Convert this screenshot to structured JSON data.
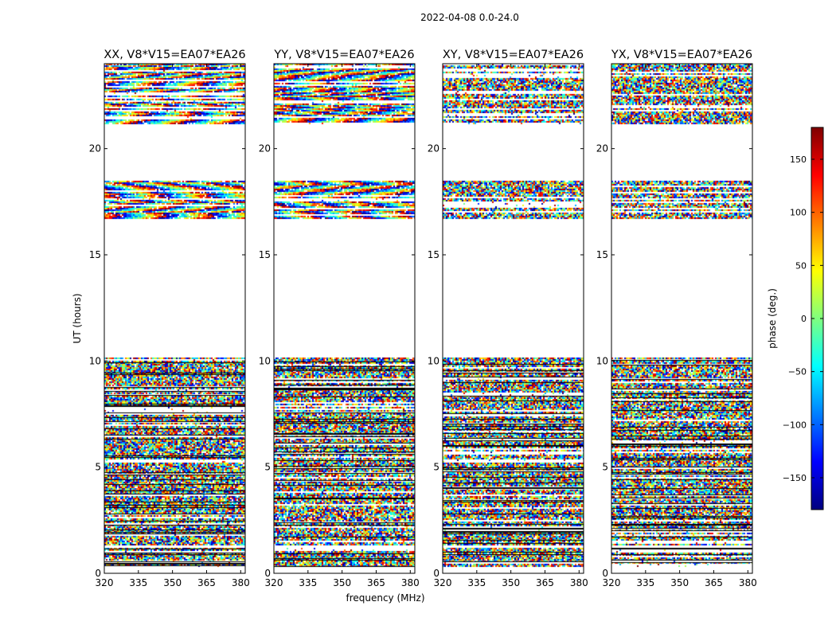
{
  "chart_data": {
    "type": "heatmap",
    "suptitle": "2022-04-08 0.0-24.0",
    "xlabel": "frequency (MHz)",
    "ylabel": "UT (hours)",
    "xlim": [
      320,
      382
    ],
    "ylim": [
      0,
      24
    ],
    "xticks": [
      320,
      335,
      350,
      365,
      380
    ],
    "yticks": [
      0,
      5,
      10,
      15,
      20
    ],
    "colorbar": {
      "label": "phase (deg.)",
      "range": [
        -180,
        180
      ],
      "ticks": [
        150,
        100,
        50,
        0,
        -50,
        -100,
        -150
      ],
      "colormap": [
        "#00007f",
        "#0000ff",
        "#007fff",
        "#00ffff",
        "#7fff7f",
        "#ffff00",
        "#ff7f00",
        "#ff0000",
        "#7f0000"
      ]
    },
    "flagged_ut_ranges": [
      [
        10.15,
        16.7
      ],
      [
        18.5,
        21.2
      ],
      [
        1.2,
        1.3
      ]
    ],
    "data_ut_ranges": [
      [
        0.3,
        1.2
      ],
      [
        1.3,
        10.15
      ],
      [
        16.7,
        18.5
      ],
      [
        21.2,
        24.0
      ]
    ],
    "panels": [
      {
        "title": "XX, V8*V15=EA07*EA26",
        "polarization": "XX"
      },
      {
        "title": "YY, V8*V15=EA07*EA26",
        "polarization": "YY"
      },
      {
        "title": "XY, V8*V15=EA07*EA26",
        "polarization": "XY"
      },
      {
        "title": "YX, V8*V15=EA07*EA26",
        "polarization": "YX"
      }
    ]
  }
}
